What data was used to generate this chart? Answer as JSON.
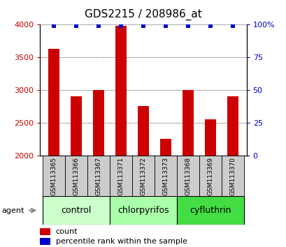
{
  "title": "GDS2215 / 208986_at",
  "samples": [
    "GSM113365",
    "GSM113366",
    "GSM113367",
    "GSM113371",
    "GSM113372",
    "GSM113373",
    "GSM113368",
    "GSM113369",
    "GSM113370"
  ],
  "counts": [
    3630,
    2910,
    3000,
    3980,
    2760,
    2260,
    3000,
    2550,
    2910
  ],
  "percentiles": [
    99,
    99,
    99,
    99,
    99,
    99,
    99,
    99,
    99
  ],
  "groups": [
    {
      "label": "control",
      "start": 0,
      "end": 3,
      "color": "#ccffcc"
    },
    {
      "label": "chlorpyrifos",
      "start": 3,
      "end": 6,
      "color": "#aaffaa"
    },
    {
      "label": "cyfluthrin",
      "start": 6,
      "end": 9,
      "color": "#44dd44"
    }
  ],
  "ylim_left": [
    2000,
    4000
  ],
  "ylim_right": [
    0,
    100
  ],
  "yticks_left": [
    2000,
    2500,
    3000,
    3500,
    4000
  ],
  "yticks_right": [
    0,
    25,
    50,
    75,
    100
  ],
  "ytick_labels_right": [
    "0",
    "25",
    "50",
    "75",
    "100%"
  ],
  "bar_color": "#cc0000",
  "dot_color": "#0000cc",
  "bar_width": 0.5,
  "sample_box_color": "#cccccc",
  "agent_label": "agent",
  "legend_count_label": "count",
  "legend_percentile_label": "percentile rank within the sample",
  "title_fontsize": 11,
  "tick_fontsize": 8,
  "group_fontsize": 9,
  "sample_fontsize": 6.5,
  "legend_fontsize": 8
}
